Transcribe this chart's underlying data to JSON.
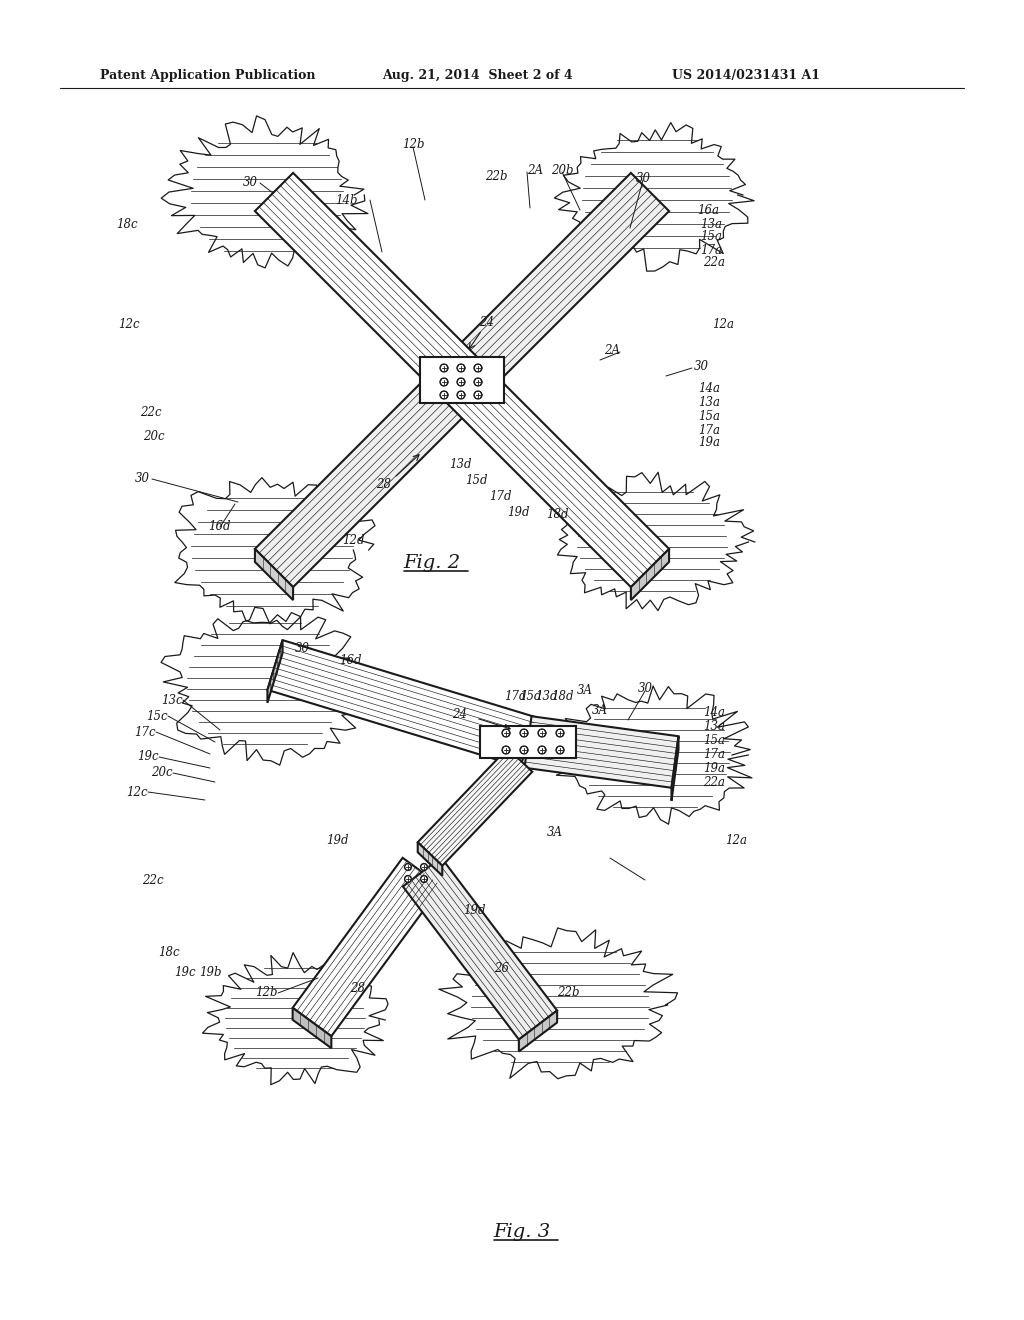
{
  "bg_color": "#ffffff",
  "line_color": "#1a1a1a",
  "header_text": "Patent Application Publication",
  "header_date": "Aug. 21, 2014  Sheet 2 of 4",
  "header_patent": "US 2014/0231431 A1",
  "fig2_caption": "Fig. 2",
  "fig3_caption": "Fig. 3"
}
